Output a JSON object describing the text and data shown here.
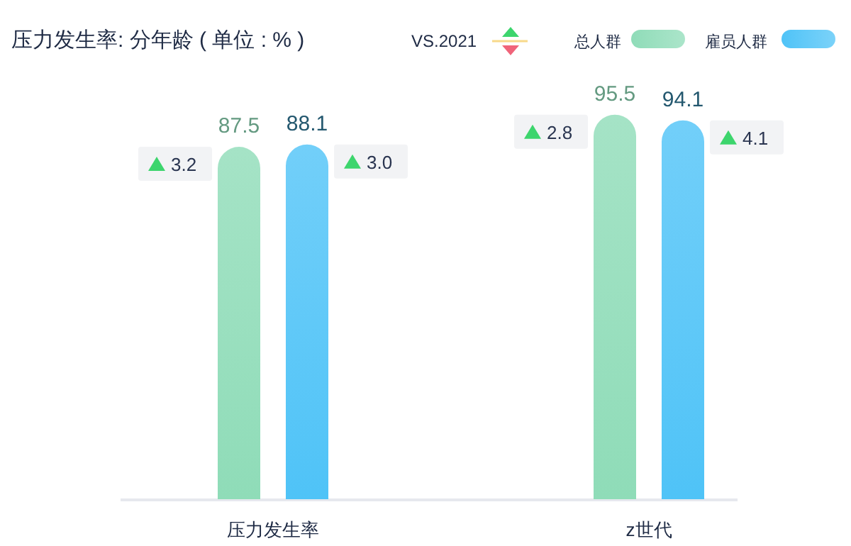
{
  "chart_data": {
    "type": "bar",
    "title": "压力发生率: 分年龄 ( 单位 : % )",
    "categories": [
      "压力发生率",
      "z世代"
    ],
    "series": [
      {
        "name": "总人群",
        "color": "#8fdcb8",
        "values": [
          87.5,
          95.5
        ]
      },
      {
        "name": "雇员人群",
        "color": "#4fc3f7",
        "values": [
          88.1,
          94.1
        ]
      }
    ],
    "data_labels": true,
    "legend": "top right",
    "annotations": [
      "VS.2021",
      "3.2",
      "3.0",
      "2.8",
      "4.1"
    ]
  }
}
